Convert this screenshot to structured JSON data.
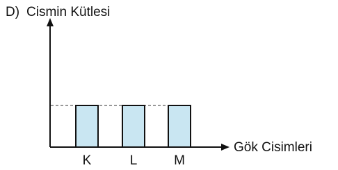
{
  "chart_data": {
    "type": "bar",
    "label": "D)",
    "title": "Cismin Kütlesi",
    "x_label": "Gök Cisimleri",
    "categories": [
      "K",
      "L",
      "M"
    ],
    "values": [
      1,
      1,
      1
    ],
    "color": "#c9e6f2",
    "ylim": [
      0,
      3
    ],
    "reference_line": true
  }
}
